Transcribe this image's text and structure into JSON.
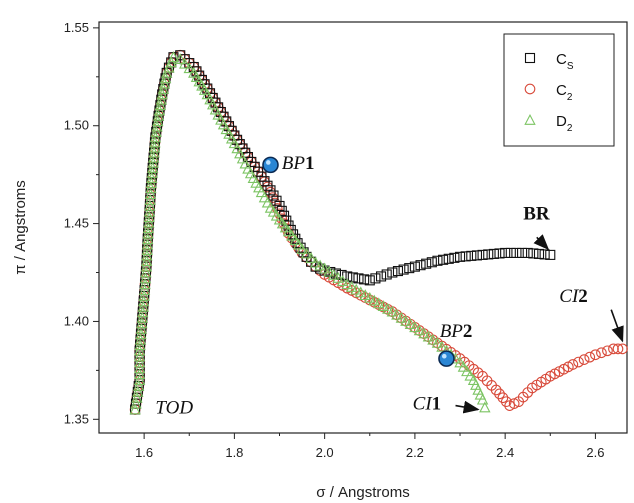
{
  "chart_data": {
    "type": "scatter",
    "xlabel": "σ / Angstroms",
    "ylabel": "π / Angstroms",
    "xlim": [
      1.5,
      2.67
    ],
    "ylim": [
      1.343,
      1.553
    ],
    "xticks": [
      "1.6",
      "1.8",
      "2.0",
      "2.2",
      "2.4",
      "2.6"
    ],
    "yticks": [
      "1.35",
      "1.40",
      "1.45",
      "1.50",
      "1.55"
    ],
    "legend": {
      "position": "top-right",
      "entries": [
        {
          "main": "C",
          "sub": "S",
          "marker": "square",
          "color": "#111111"
        },
        {
          "main": "C",
          "sub": "2",
          "marker": "circle",
          "color": "#d84a3a"
        },
        {
          "main": "D",
          "sub": "2",
          "marker": "triangle",
          "color": "#7cc463"
        }
      ]
    },
    "series": [
      {
        "name": "Cs",
        "marker": "square",
        "color": "#111111",
        "branches": [
          [
            [
              1.58,
              1.355
            ],
            [
              1.59,
              1.37
            ],
            [
              1.59,
              1.385
            ],
            [
              1.595,
              1.399
            ],
            [
              1.6,
              1.413
            ],
            [
              1.605,
              1.428
            ],
            [
              1.608,
              1.442
            ],
            [
              1.612,
              1.456
            ],
            [
              1.615,
              1.468
            ],
            [
              1.62,
              1.481
            ],
            [
              1.625,
              1.494
            ],
            [
              1.632,
              1.505
            ],
            [
              1.64,
              1.516
            ],
            [
              1.65,
              1.527
            ],
            [
              1.665,
              1.535
            ],
            [
              1.68,
              1.536
            ],
            [
              1.71,
              1.53
            ],
            [
              1.74,
              1.519
            ],
            [
              1.77,
              1.507
            ],
            [
              1.8,
              1.495
            ],
            [
              1.83,
              1.484
            ],
            [
              1.86,
              1.474
            ],
            [
              1.88,
              1.467
            ],
            [
              1.9,
              1.459
            ],
            [
              1.92,
              1.449
            ],
            [
              1.94,
              1.44
            ],
            [
              1.96,
              1.433
            ],
            [
              1.98,
              1.428
            ],
            [
              2.0,
              1.426
            ],
            [
              2.05,
              1.423
            ],
            [
              2.1,
              1.421
            ],
            [
              2.15,
              1.425
            ],
            [
              2.2,
              1.428
            ],
            [
              2.25,
              1.431
            ],
            [
              2.3,
              1.433
            ],
            [
              2.35,
              1.434
            ],
            [
              2.4,
              1.435
            ],
            [
              2.45,
              1.435
            ],
            [
              2.5,
              1.434
            ]
          ]
        ]
      },
      {
        "name": "C2",
        "marker": "circle",
        "color": "#d84a3a",
        "branches": [
          [
            [
              1.58,
              1.355
            ],
            [
              1.59,
              1.37
            ],
            [
              1.59,
              1.385
            ],
            [
              1.595,
              1.399
            ],
            [
              1.6,
              1.413
            ],
            [
              1.605,
              1.428
            ],
            [
              1.608,
              1.442
            ],
            [
              1.612,
              1.456
            ],
            [
              1.615,
              1.468
            ],
            [
              1.62,
              1.481
            ],
            [
              1.625,
              1.494
            ],
            [
              1.632,
              1.505
            ],
            [
              1.64,
              1.516
            ],
            [
              1.65,
              1.527
            ],
            [
              1.665,
              1.535
            ],
            [
              1.68,
              1.536
            ],
            [
              1.71,
              1.53
            ],
            [
              1.74,
              1.519
            ],
            [
              1.77,
              1.507
            ],
            [
              1.8,
              1.495
            ],
            [
              1.83,
              1.484
            ],
            [
              1.86,
              1.474
            ],
            [
              1.88,
              1.466
            ],
            [
              1.9,
              1.455
            ],
            [
              1.92,
              1.445
            ],
            [
              1.95,
              1.435
            ],
            [
              1.98,
              1.428
            ],
            [
              2.0,
              1.424
            ],
            [
              2.05,
              1.417
            ],
            [
              2.1,
              1.411
            ],
            [
              2.15,
              1.405
            ],
            [
              2.2,
              1.397
            ],
            [
              2.25,
              1.389
            ],
            [
              2.3,
              1.381
            ],
            [
              2.35,
              1.372
            ],
            [
              2.38,
              1.365
            ],
            [
              2.41,
              1.357
            ],
            [
              2.43,
              1.359
            ],
            [
              2.46,
              1.366
            ],
            [
              2.5,
              1.372
            ],
            [
              2.55,
              1.378
            ],
            [
              2.6,
              1.383
            ],
            [
              2.64,
              1.386
            ],
            [
              2.66,
              1.386
            ]
          ]
        ]
      },
      {
        "name": "D2",
        "marker": "triangle",
        "color": "#7cc463",
        "branches": [
          [
            [
              1.58,
              1.355
            ],
            [
              1.59,
              1.37
            ],
            [
              1.59,
              1.385
            ],
            [
              1.595,
              1.399
            ],
            [
              1.6,
              1.413
            ],
            [
              1.605,
              1.428
            ],
            [
              1.608,
              1.442
            ],
            [
              1.612,
              1.456
            ],
            [
              1.615,
              1.468
            ],
            [
              1.62,
              1.481
            ],
            [
              1.625,
              1.494
            ],
            [
              1.632,
              1.505
            ],
            [
              1.64,
              1.516
            ],
            [
              1.65,
              1.527
            ],
            [
              1.665,
              1.535
            ],
            [
              1.68,
              1.534
            ],
            [
              1.71,
              1.527
            ],
            [
              1.74,
              1.516
            ],
            [
              1.77,
              1.503
            ],
            [
              1.8,
              1.491
            ],
            [
              1.83,
              1.478
            ],
            [
              1.86,
              1.466
            ],
            [
              1.88,
              1.458
            ],
            [
              1.9,
              1.452
            ],
            [
              1.92,
              1.446
            ],
            [
              1.95,
              1.437
            ],
            [
              1.98,
              1.43
            ],
            [
              2.0,
              1.427
            ],
            [
              2.05,
              1.419
            ],
            [
              2.1,
              1.412
            ],
            [
              2.15,
              1.405
            ],
            [
              2.2,
              1.397
            ],
            [
              2.25,
              1.389
            ],
            [
              2.3,
              1.379
            ],
            [
              2.33,
              1.37
            ],
            [
              2.35,
              1.36
            ],
            [
              2.355,
              1.356
            ]
          ]
        ]
      }
    ],
    "highlights": [
      {
        "x": 1.88,
        "y": 1.48,
        "color": "#2a86d4"
      },
      {
        "x": 2.27,
        "y": 1.381,
        "color": "#2a86d4"
      }
    ],
    "annotations": [
      {
        "id": "bp1",
        "italic": "BP",
        "bold": "1",
        "x": 1.905,
        "y": 1.478
      },
      {
        "id": "bp2",
        "italic": "BP",
        "bold": "2",
        "x": 2.255,
        "y": 1.392
      },
      {
        "id": "br",
        "italic": "",
        "bold": "BR",
        "x": 2.44,
        "y": 1.452
      },
      {
        "id": "ci1",
        "italic": "CI",
        "bold": "1",
        "x": 2.195,
        "y": 1.355
      },
      {
        "id": "ci2",
        "italic": "CI",
        "bold": "2",
        "x": 2.52,
        "y": 1.41
      },
      {
        "id": "tod",
        "italic": "TOD",
        "bold": "",
        "x": 1.625,
        "y": 1.353
      }
    ],
    "arrows": [
      {
        "x1": 2.47,
        "y1": 1.443,
        "x2": 2.495,
        "y2": 1.437
      },
      {
        "x1": 2.29,
        "y1": 1.357,
        "x2": 2.34,
        "y2": 1.355
      },
      {
        "x1": 2.635,
        "y1": 1.406,
        "x2": 2.66,
        "y2": 1.39
      }
    ]
  }
}
